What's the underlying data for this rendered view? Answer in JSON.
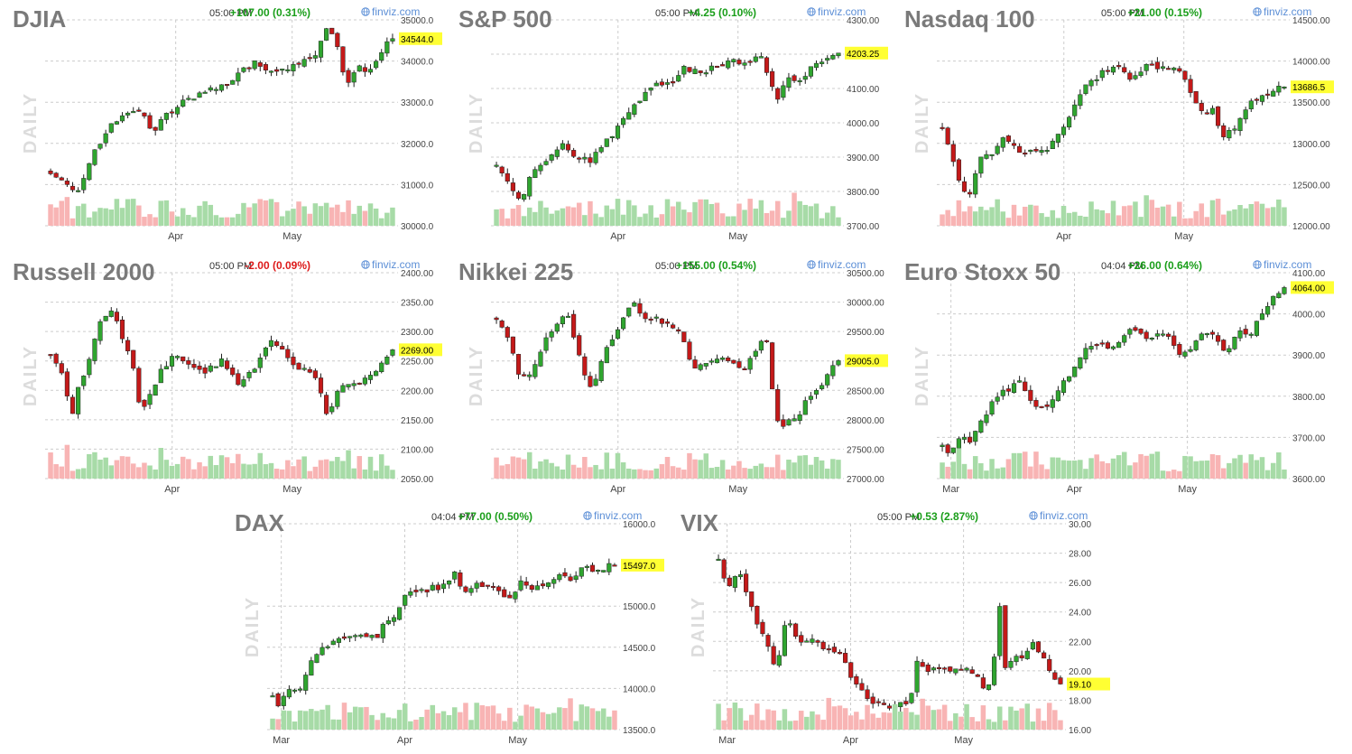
{
  "colors": {
    "up": "#2fa52f",
    "down": "#c41919",
    "vol_up": "#a7dba7",
    "vol_down": "#f8b4b4",
    "title": "#7a7a7a",
    "grid": "#cccccc",
    "axis_text": "#444444",
    "price_label_bg": "#ffff33",
    "change_up": "#1a9e1a",
    "change_down": "#dd1a1a",
    "watermark": "#dcdcdc",
    "brand": "#5b8ed6"
  },
  "watermark_label": "DAILY",
  "brand_label": "finviz.com",
  "brand_icon": "globe-icon",
  "chart_data": [
    {
      "type": "candlestick",
      "title": "DJIA",
      "time": "05:00 PM",
      "change": "+107.00 (0.31%)",
      "change_dir": "up",
      "last_price": 34544.0,
      "last_label": "34544.0",
      "y_ticks": [
        "35000.0",
        "34000.0",
        "33000.0",
        "32000.0",
        "31000.0",
        "30000.0"
      ],
      "ylim": [
        30000,
        35000
      ],
      "x_labels": [
        {
          "label": "Apr",
          "frac": 0.37
        },
        {
          "label": "May",
          "frac": 0.7
        }
      ],
      "anchors": [
        [
          0,
          31300
        ],
        [
          0.05,
          31000
        ],
        [
          0.08,
          30800
        ],
        [
          0.12,
          31700
        ],
        [
          0.18,
          32500
        ],
        [
          0.23,
          32800
        ],
        [
          0.27,
          32700
        ],
        [
          0.3,
          32300
        ],
        [
          0.33,
          32600
        ],
        [
          0.38,
          33000
        ],
        [
          0.42,
          33100
        ],
        [
          0.47,
          33300
        ],
        [
          0.52,
          33400
        ],
        [
          0.55,
          33700
        ],
        [
          0.6,
          34000
        ],
        [
          0.65,
          33700
        ],
        [
          0.7,
          33800
        ],
        [
          0.75,
          34100
        ],
        [
          0.78,
          34200
        ],
        [
          0.81,
          34900
        ],
        [
          0.83,
          34600
        ],
        [
          0.85,
          33900
        ],
        [
          0.87,
          33400
        ],
        [
          0.9,
          33900
        ],
        [
          0.93,
          33700
        ],
        [
          0.96,
          34200
        ],
        [
          1,
          34544
        ]
      ]
    },
    {
      "type": "candlestick",
      "title": "S&P 500",
      "time": "05:00 PM",
      "change": "+4.25 (0.10%)",
      "change_dir": "up",
      "last_price": 4203.25,
      "last_label": "4203.25",
      "y_ticks": [
        "4300.00",
        "4200.00",
        "4100.00",
        "4000.00",
        "3900.00",
        "3800.00",
        "3700.00"
      ],
      "ylim": [
        3700,
        4300
      ],
      "x_labels": [
        {
          "label": "Apr",
          "frac": 0.36
        },
        {
          "label": "May",
          "frac": 0.7
        }
      ],
      "anchors": [
        [
          0,
          3880
        ],
        [
          0.05,
          3800
        ],
        [
          0.07,
          3760
        ],
        [
          0.1,
          3850
        ],
        [
          0.15,
          3900
        ],
        [
          0.2,
          3940
        ],
        [
          0.23,
          3900
        ],
        [
          0.28,
          3890
        ],
        [
          0.31,
          3940
        ],
        [
          0.35,
          3980
        ],
        [
          0.38,
          4030
        ],
        [
          0.42,
          4070
        ],
        [
          0.47,
          4110
        ],
        [
          0.52,
          4120
        ],
        [
          0.55,
          4160
        ],
        [
          0.6,
          4150
        ],
        [
          0.65,
          4170
        ],
        [
          0.7,
          4180
        ],
        [
          0.75,
          4180
        ],
        [
          0.77,
          4200
        ],
        [
          0.78,
          4180
        ],
        [
          0.8,
          4120
        ],
        [
          0.82,
          4060
        ],
        [
          0.85,
          4130
        ],
        [
          0.88,
          4110
        ],
        [
          0.9,
          4140
        ],
        [
          0.93,
          4170
        ],
        [
          0.96,
          4190
        ],
        [
          1,
          4203
        ]
      ]
    },
    {
      "type": "candlestick",
      "title": "Nasdaq 100",
      "time": "05:00 PM",
      "change": "+21.00 (0.15%)",
      "change_dir": "up",
      "last_price": 13686.5,
      "last_label": "13686.5",
      "y_ticks": [
        "14500.00",
        "14000.00",
        "13500.00",
        "13000.00",
        "12500.00",
        "12000.00"
      ],
      "ylim": [
        12000,
        14500
      ],
      "x_labels": [
        {
          "label": "Apr",
          "frac": 0.36
        },
        {
          "label": "May",
          "frac": 0.7
        }
      ],
      "anchors": [
        [
          0,
          13200
        ],
        [
          0.03,
          12800
        ],
        [
          0.06,
          12400
        ],
        [
          0.08,
          12400
        ],
        [
          0.12,
          12900
        ],
        [
          0.15,
          12900
        ],
        [
          0.18,
          13100
        ],
        [
          0.22,
          12900
        ],
        [
          0.26,
          12900
        ],
        [
          0.3,
          12900
        ],
        [
          0.33,
          13100
        ],
        [
          0.37,
          13300
        ],
        [
          0.4,
          13600
        ],
        [
          0.45,
          13800
        ],
        [
          0.5,
          13950
        ],
        [
          0.55,
          13800
        ],
        [
          0.6,
          13950
        ],
        [
          0.65,
          13900
        ],
        [
          0.7,
          13900
        ],
        [
          0.73,
          13600
        ],
        [
          0.76,
          13400
        ],
        [
          0.79,
          13400
        ],
        [
          0.82,
          13100
        ],
        [
          0.86,
          13200
        ],
        [
          0.9,
          13500
        ],
        [
          0.94,
          13600
        ],
        [
          1,
          13686
        ]
      ]
    },
    {
      "type": "candlestick",
      "title": "Russell 2000",
      "time": "05:00 PM",
      "change": "-2.00 (0.09%)",
      "change_dir": "down",
      "last_price": 2269.0,
      "last_label": "2269.00",
      "y_ticks": [
        "2400.00",
        "2350.00",
        "2300.00",
        "2250.00",
        "2200.00",
        "2150.00",
        "2100.00",
        "2050.00"
      ],
      "ylim": [
        2050,
        2400
      ],
      "x_labels": [
        {
          "label": "Apr",
          "frac": 0.36
        },
        {
          "label": "May",
          "frac": 0.7
        }
      ],
      "anchors": [
        [
          0,
          2260
        ],
        [
          0.04,
          2220
        ],
        [
          0.06,
          2150
        ],
        [
          0.08,
          2200
        ],
        [
          0.12,
          2270
        ],
        [
          0.15,
          2320
        ],
        [
          0.18,
          2340
        ],
        [
          0.2,
          2300
        ],
        [
          0.24,
          2250
        ],
        [
          0.26,
          2170
        ],
        [
          0.28,
          2180
        ],
        [
          0.32,
          2230
        ],
        [
          0.36,
          2260
        ],
        [
          0.4,
          2240
        ],
        [
          0.45,
          2230
        ],
        [
          0.5,
          2250
        ],
        [
          0.55,
          2210
        ],
        [
          0.6,
          2240
        ],
        [
          0.65,
          2290
        ],
        [
          0.7,
          2250
        ],
        [
          0.75,
          2230
        ],
        [
          0.78,
          2220
        ],
        [
          0.81,
          2150
        ],
        [
          0.84,
          2200
        ],
        [
          0.88,
          2210
        ],
        [
          0.92,
          2220
        ],
        [
          0.96,
          2240
        ],
        [
          1,
          2269
        ]
      ]
    },
    {
      "type": "candlestick",
      "title": "Nikkei 225",
      "time": "05:00 PM",
      "change": "+155.00 (0.54%)",
      "change_dir": "up",
      "last_price": 29005.0,
      "last_label": "29005.0",
      "y_ticks": [
        "30500.00",
        "30000.00",
        "29500.00",
        "29000.00",
        "28500.00",
        "28000.00",
        "27500.00",
        "27000.00"
      ],
      "ylim": [
        27000,
        30500
      ],
      "x_labels": [
        {
          "label": "Apr",
          "frac": 0.36
        },
        {
          "label": "May",
          "frac": 0.7
        }
      ],
      "anchors": [
        [
          0,
          29700
        ],
        [
          0.04,
          29300
        ],
        [
          0.07,
          28700
        ],
        [
          0.1,
          28800
        ],
        [
          0.14,
          29300
        ],
        [
          0.18,
          29700
        ],
        [
          0.21,
          29800
        ],
        [
          0.23,
          29300
        ],
        [
          0.26,
          28700
        ],
        [
          0.28,
          28500
        ],
        [
          0.31,
          29100
        ],
        [
          0.35,
          29500
        ],
        [
          0.38,
          29900
        ],
        [
          0.4,
          30000
        ],
        [
          0.43,
          29700
        ],
        [
          0.47,
          29700
        ],
        [
          0.52,
          29600
        ],
        [
          0.55,
          29300
        ],
        [
          0.57,
          28900
        ],
        [
          0.6,
          28900
        ],
        [
          0.65,
          29100
        ],
        [
          0.7,
          28900
        ],
        [
          0.73,
          28900
        ],
        [
          0.77,
          29300
        ],
        [
          0.79,
          29300
        ],
        [
          0.81,
          28400
        ],
        [
          0.83,
          27800
        ],
        [
          0.85,
          28000
        ],
        [
          0.88,
          28000
        ],
        [
          0.91,
          28400
        ],
        [
          0.95,
          28600
        ],
        [
          1,
          29005
        ]
      ]
    },
    {
      "type": "candlestick",
      "title": "Euro Stoxx 50",
      "time": "04:04 PM",
      "change": "+26.00 (0.64%)",
      "change_dir": "up",
      "last_price": 4064.0,
      "last_label": "4064.00",
      "y_ticks": [
        "4100.00",
        "4000.00",
        "3900.00",
        "3800.00",
        "3700.00",
        "3600.00"
      ],
      "ylim": [
        3600,
        4100
      ],
      "x_labels": [
        {
          "label": "Mar",
          "frac": 0.04
        },
        {
          "label": "Apr",
          "frac": 0.39
        },
        {
          "label": "May",
          "frac": 0.71
        }
      ],
      "anchors": [
        [
          0,
          3680
        ],
        [
          0.02,
          3650
        ],
        [
          0.05,
          3700
        ],
        [
          0.08,
          3690
        ],
        [
          0.12,
          3750
        ],
        [
          0.16,
          3800
        ],
        [
          0.2,
          3820
        ],
        [
          0.23,
          3840
        ],
        [
          0.25,
          3790
        ],
        [
          0.28,
          3780
        ],
        [
          0.31,
          3780
        ],
        [
          0.35,
          3830
        ],
        [
          0.38,
          3860
        ],
        [
          0.42,
          3920
        ],
        [
          0.47,
          3920
        ],
        [
          0.52,
          3930
        ],
        [
          0.55,
          3960
        ],
        [
          0.6,
          3940
        ],
        [
          0.65,
          3950
        ],
        [
          0.7,
          3900
        ],
        [
          0.75,
          3940
        ],
        [
          0.78,
          3960
        ],
        [
          0.8,
          3940
        ],
        [
          0.83,
          3900
        ],
        [
          0.86,
          3960
        ],
        [
          0.9,
          3950
        ],
        [
          0.93,
          4000
        ],
        [
          0.96,
          4030
        ],
        [
          1,
          4064
        ]
      ]
    },
    {
      "type": "candlestick",
      "title": "DAX",
      "time": "04:04 PM",
      "change": "+77.00 (0.50%)",
      "change_dir": "up",
      "last_price": 15497.0,
      "last_label": "15497.0",
      "y_ticks": [
        "16000.0",
        "15000.0",
        "14500.0",
        "14000.0",
        "13500.0"
      ],
      "ylim": [
        13500,
        16000
      ],
      "x_labels": [
        {
          "label": "Mar",
          "frac": 0.04
        },
        {
          "label": "Apr",
          "frac": 0.39
        },
        {
          "label": "May",
          "frac": 0.71
        }
      ],
      "anchors": [
        [
          0,
          13900
        ],
        [
          0.02,
          13800
        ],
        [
          0.05,
          14000
        ],
        [
          0.08,
          13950
        ],
        [
          0.11,
          14300
        ],
        [
          0.15,
          14500
        ],
        [
          0.2,
          14600
        ],
        [
          0.25,
          14650
        ],
        [
          0.3,
          14600
        ],
        [
          0.33,
          14800
        ],
        [
          0.36,
          14900
        ],
        [
          0.4,
          15200
        ],
        [
          0.45,
          15200
        ],
        [
          0.5,
          15250
        ],
        [
          0.53,
          15400
        ],
        [
          0.56,
          15200
        ],
        [
          0.6,
          15250
        ],
        [
          0.65,
          15250
        ],
        [
          0.68,
          15100
        ],
        [
          0.7,
          15100
        ],
        [
          0.73,
          15300
        ],
        [
          0.76,
          15200
        ],
        [
          0.8,
          15300
        ],
        [
          0.84,
          15400
        ],
        [
          0.87,
          15300
        ],
        [
          0.9,
          15450
        ],
        [
          0.95,
          15450
        ],
        [
          1,
          15497
        ]
      ]
    },
    {
      "type": "candlestick",
      "title": "VIX",
      "time": "05:00 PM",
      "change": "+0.53 (2.87%)",
      "change_dir": "up",
      "last_price": 19.1,
      "last_label": "19.10",
      "y_ticks": [
        "30.00",
        "28.00",
        "26.00",
        "24.00",
        "22.00",
        "20.00",
        "18.00",
        "16.00"
      ],
      "ylim": [
        16,
        30
      ],
      "x_labels": [
        {
          "label": "Mar",
          "frac": 0.04
        },
        {
          "label": "Apr",
          "frac": 0.39
        },
        {
          "label": "May",
          "frac": 0.71
        }
      ],
      "anchors": [
        [
          0,
          27.5
        ],
        [
          0.03,
          25.5
        ],
        [
          0.06,
          27
        ],
        [
          0.09,
          24.5
        ],
        [
          0.13,
          22.5
        ],
        [
          0.17,
          20
        ],
        [
          0.2,
          24
        ],
        [
          0.23,
          22
        ],
        [
          0.27,
          22
        ],
        [
          0.32,
          21.5
        ],
        [
          0.36,
          21
        ],
        [
          0.4,
          19
        ],
        [
          0.44,
          18
        ],
        [
          0.48,
          17.5
        ],
        [
          0.52,
          17.5
        ],
        [
          0.56,
          18
        ],
        [
          0.58,
          20.5
        ],
        [
          0.62,
          20
        ],
        [
          0.66,
          20
        ],
        [
          0.7,
          20
        ],
        [
          0.74,
          20
        ],
        [
          0.77,
          19
        ],
        [
          0.8,
          19
        ],
        [
          0.82,
          25
        ],
        [
          0.84,
          20
        ],
        [
          0.86,
          21
        ],
        [
          0.89,
          21
        ],
        [
          0.92,
          22
        ],
        [
          0.95,
          21
        ],
        [
          0.98,
          19.5
        ],
        [
          1,
          19.1
        ]
      ]
    }
  ]
}
